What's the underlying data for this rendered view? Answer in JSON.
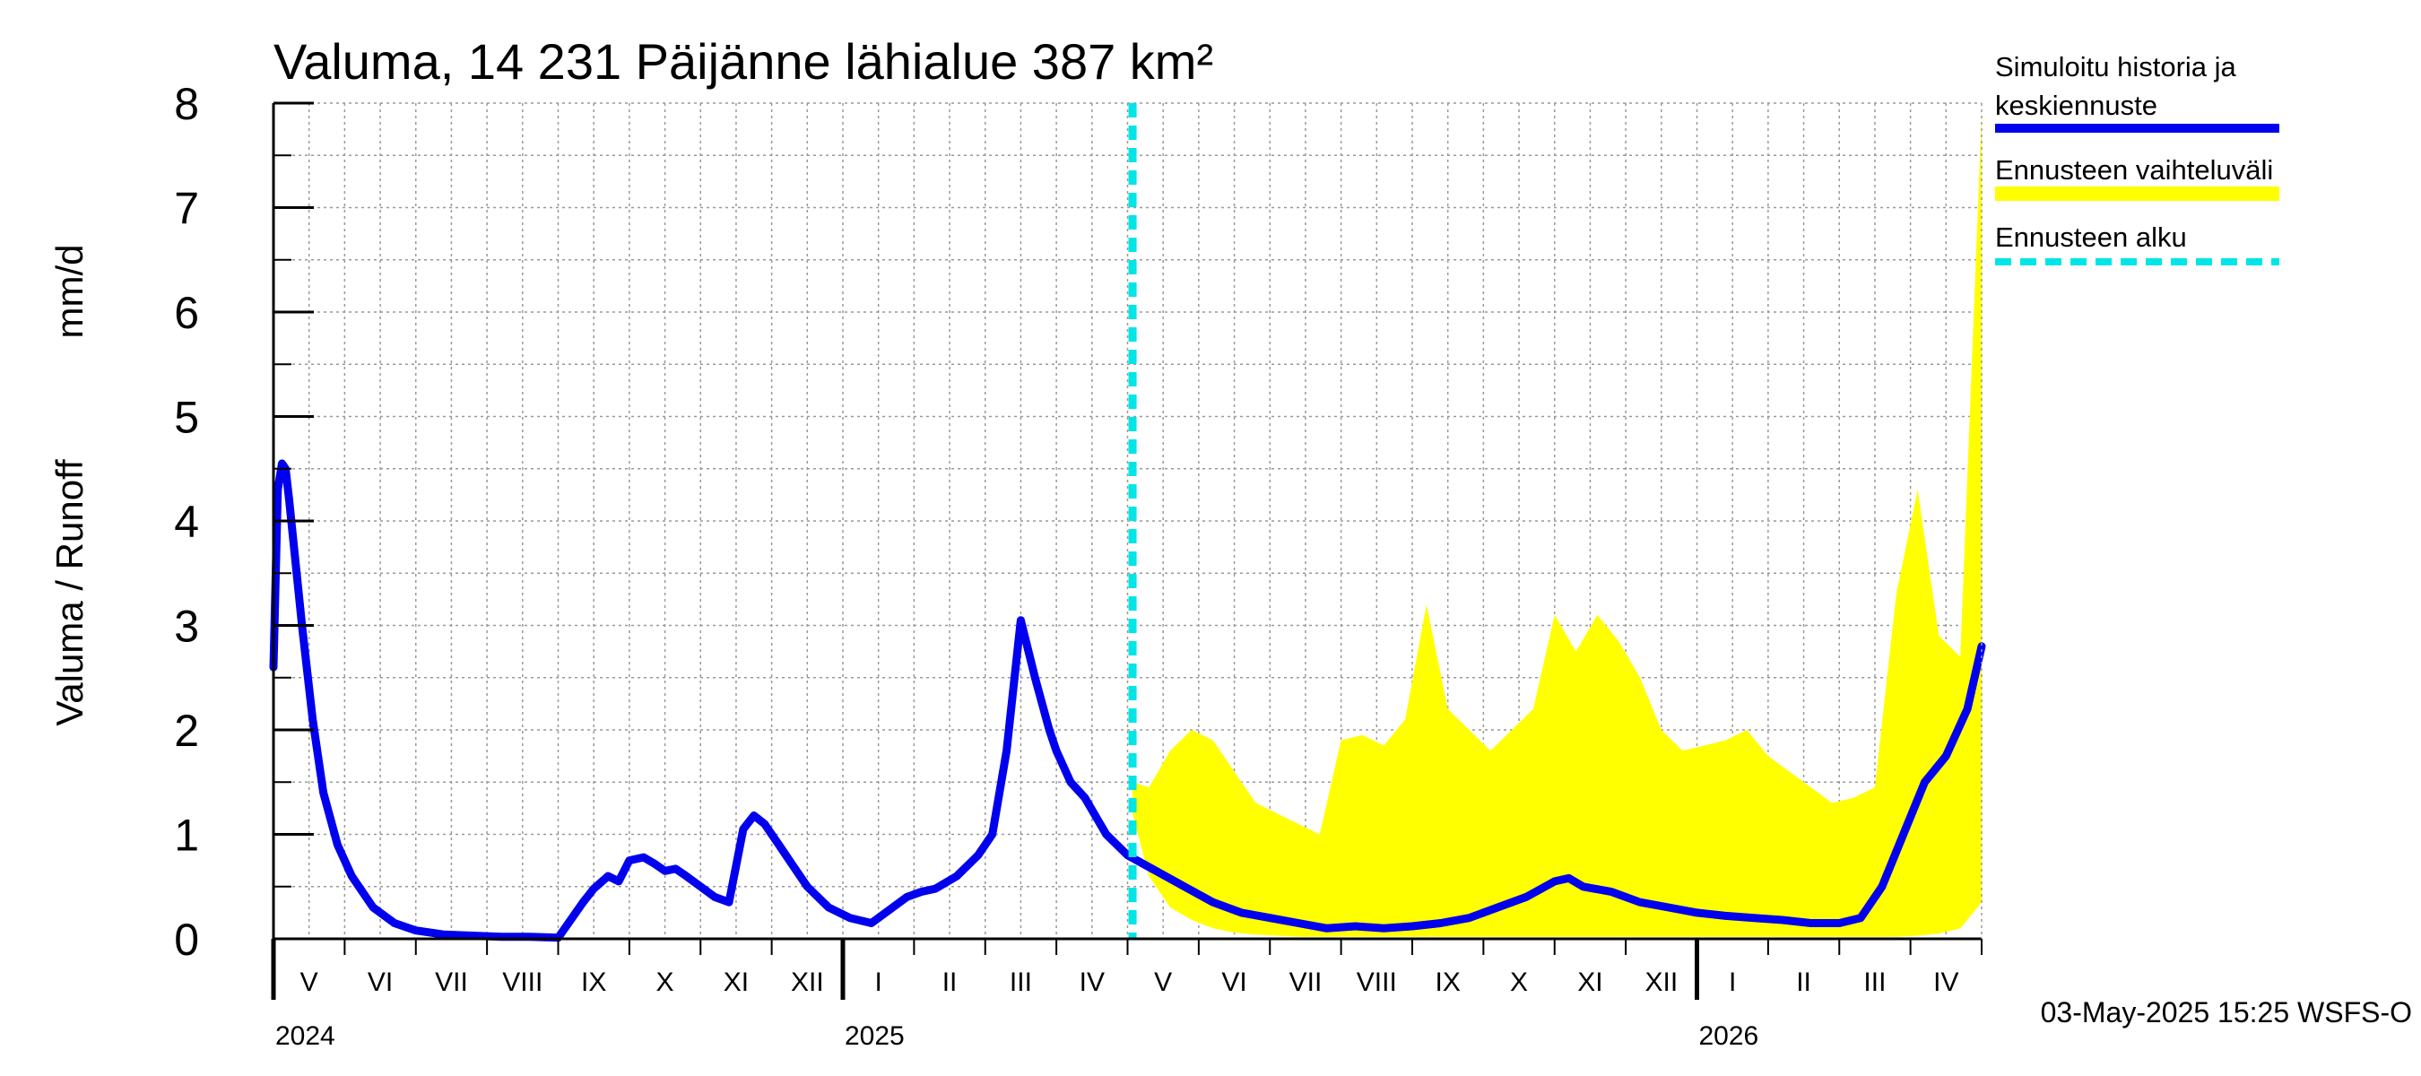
{
  "chart_data": {
    "type": "area",
    "title": "Valuma, 14 231 Päijänne lähialue 387 km²",
    "ylabel_left": "Valuma / Runoff",
    "ylabel_right": "mm/d",
    "ylim": [
      0,
      8
    ],
    "yticks": [
      0,
      1,
      2,
      3,
      4,
      5,
      6,
      7,
      8
    ],
    "xlim_months": [
      0,
      24
    ],
    "x_unit": "months since 2024-05-01",
    "month_labels": [
      "V",
      "VI",
      "VII",
      "VIII",
      "IX",
      "X",
      "XI",
      "XII",
      "I",
      "II",
      "III",
      "IV",
      "V",
      "VI",
      "VII",
      "VIII",
      "IX",
      "X",
      "XI",
      "XII",
      "I",
      "II",
      "III",
      "IV"
    ],
    "year_labels": [
      {
        "label": "2024",
        "month": 0
      },
      {
        "label": "2025",
        "month": 8
      },
      {
        "label": "2026",
        "month": 20
      }
    ],
    "grid": true,
    "forecast_start": 12.07,
    "legend": {
      "placement": "top-right",
      "entries": [
        {
          "label": "Simuloitu historia ja keskiennuste",
          "color": "#0000ee",
          "style": "solid"
        },
        {
          "label": "Ennusteen vaihteluväli",
          "color": "#ffff00",
          "style": "band"
        },
        {
          "label": "Ennusteen alku",
          "color": "#00e5e5",
          "style": "dashed"
        }
      ]
    },
    "series": [
      {
        "name": "Simuloitu historia ja keskiennuste",
        "x": [
          0.0,
          0.06,
          0.12,
          0.17,
          0.22,
          0.4,
          0.55,
          0.7,
          0.9,
          1.1,
          1.4,
          1.7,
          2.0,
          2.4,
          2.8,
          3.2,
          3.6,
          4.0,
          4.35,
          4.5,
          4.7,
          4.85,
          5.0,
          5.2,
          5.35,
          5.5,
          5.65,
          5.8,
          6.0,
          6.2,
          6.4,
          6.6,
          6.75,
          6.9,
          7.0,
          7.1,
          7.2,
          7.3,
          7.5,
          7.8,
          8.1,
          8.4,
          8.7,
          8.9,
          9.1,
          9.3,
          9.6,
          9.9,
          10.1,
          10.3,
          10.5,
          10.7,
          10.9,
          11.0,
          11.2,
          11.4,
          11.7,
          12.0,
          12.4,
          12.8,
          13.2,
          13.6,
          14.0,
          14.4,
          14.8,
          15.2,
          15.6,
          16.0,
          16.4,
          16.8,
          17.2,
          17.6,
          18.0,
          18.2,
          18.4,
          18.8,
          19.2,
          19.6,
          20.0,
          20.4,
          20.8,
          21.2,
          21.6,
          22.0,
          22.3,
          22.6,
          22.9,
          23.2,
          23.5,
          23.8,
          24.0
        ],
        "values": [
          2.6,
          4.3,
          4.55,
          4.5,
          4.2,
          3.0,
          2.1,
          1.4,
          0.9,
          0.6,
          0.3,
          0.15,
          0.08,
          0.04,
          0.03,
          0.02,
          0.02,
          0.01,
          0.35,
          0.48,
          0.6,
          0.55,
          0.75,
          0.78,
          0.72,
          0.65,
          0.67,
          0.6,
          0.5,
          0.4,
          0.35,
          1.05,
          1.18,
          1.1,
          1.0,
          0.9,
          0.8,
          0.7,
          0.5,
          0.3,
          0.2,
          0.15,
          0.3,
          0.4,
          0.45,
          0.48,
          0.6,
          0.8,
          1.0,
          1.8,
          3.05,
          2.5,
          2.0,
          1.8,
          1.5,
          1.35,
          1.0,
          0.8,
          0.65,
          0.5,
          0.35,
          0.25,
          0.2,
          0.15,
          0.1,
          0.12,
          0.1,
          0.12,
          0.15,
          0.2,
          0.3,
          0.4,
          0.55,
          0.58,
          0.5,
          0.45,
          0.35,
          0.3,
          0.25,
          0.22,
          0.2,
          0.18,
          0.15,
          0.15,
          0.2,
          0.5,
          1.0,
          1.5,
          1.75,
          2.2,
          2.8
        ]
      },
      {
        "name": "Ennusteen vaihteluväli",
        "x": [
          12.07,
          12.3,
          12.6,
          12.9,
          13.2,
          13.5,
          13.8,
          14.1,
          14.4,
          14.7,
          15.0,
          15.3,
          15.6,
          15.9,
          16.2,
          16.5,
          16.8,
          17.1,
          17.4,
          17.7,
          18.0,
          18.3,
          18.6,
          18.9,
          19.2,
          19.5,
          19.8,
          20.1,
          20.4,
          20.7,
          21.0,
          21.3,
          21.6,
          21.9,
          22.2,
          22.5,
          22.8,
          23.1,
          23.4,
          23.7,
          24.0
        ],
        "upper": [
          1.5,
          1.45,
          1.8,
          2.0,
          1.9,
          1.6,
          1.3,
          1.2,
          1.1,
          1.0,
          1.9,
          1.95,
          1.85,
          2.1,
          3.2,
          2.2,
          2.0,
          1.8,
          2.0,
          2.2,
          3.1,
          2.75,
          3.1,
          2.85,
          2.5,
          2.0,
          1.8,
          1.85,
          1.9,
          2.0,
          1.75,
          1.6,
          1.45,
          1.3,
          1.35,
          1.45,
          3.3,
          4.3,
          2.9,
          2.7,
          7.9
        ],
        "lower": [
          1.2,
          0.6,
          0.3,
          0.18,
          0.1,
          0.06,
          0.04,
          0.03,
          0.02,
          0.02,
          0.02,
          0.02,
          0.02,
          0.02,
          0.02,
          0.02,
          0.02,
          0.02,
          0.02,
          0.02,
          0.02,
          0.02,
          0.02,
          0.02,
          0.02,
          0.02,
          0.02,
          0.02,
          0.02,
          0.02,
          0.02,
          0.02,
          0.02,
          0.02,
          0.02,
          0.02,
          0.02,
          0.03,
          0.05,
          0.1,
          0.35
        ]
      }
    ]
  },
  "footer": {
    "timestamp": "03-May-2025 15:25 WSFS-O"
  }
}
